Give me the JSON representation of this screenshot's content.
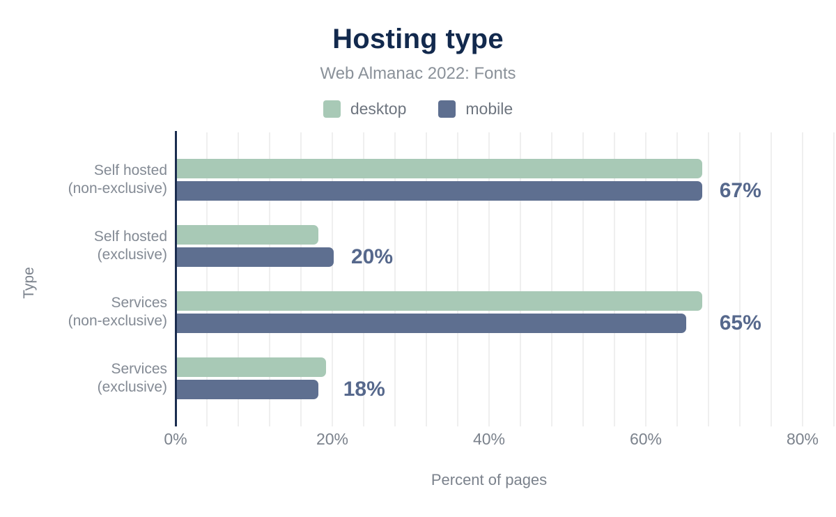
{
  "chart_data": {
    "type": "bar",
    "orientation": "horizontal",
    "title": "Hosting type",
    "subtitle": "Web Almanac 2022: Fonts",
    "xlabel": "Percent of pages",
    "ylabel": "Type",
    "xlim": [
      0,
      80
    ],
    "x_tick_labels": [
      "0%",
      "20%",
      "40%",
      "60%",
      "80%"
    ],
    "x_tick_values": [
      0,
      20,
      40,
      60,
      80
    ],
    "gridline_step_pct": 4,
    "grid": "vertical-light",
    "legend_position": "top-center",
    "categories": [
      "Self hosted (non-exclusive)",
      "Self hosted (exclusive)",
      "Services (non-exclusive)",
      "Services (exclusive)"
    ],
    "category_label_lines": [
      [
        "Self hosted",
        "(non-exclusive)"
      ],
      [
        "Self hosted",
        "(exclusive)"
      ],
      [
        "Services",
        "(non-exclusive)"
      ],
      [
        "Services",
        "(exclusive)"
      ]
    ],
    "series": [
      {
        "name": "desktop",
        "color": "#a8c9b6",
        "values": [
          67,
          18,
          67,
          19
        ]
      },
      {
        "name": "mobile",
        "color": "#5e6f90",
        "values": [
          67,
          20,
          65,
          18
        ]
      }
    ],
    "annotations": [
      "67%",
      "20%",
      "65%",
      "18%"
    ],
    "annotation_series": "mobile",
    "annotation_color": "#56688c"
  },
  "colors": {
    "title": "#12294d",
    "subtitle": "#8a9199",
    "axis_line": "#1b2d4f",
    "gridline": "#efefef",
    "tick_text": "#7b828c",
    "category_text": "#838a94",
    "background": "#ffffff"
  }
}
